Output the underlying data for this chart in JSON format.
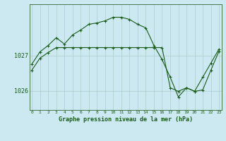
{
  "title": "Graphe pression niveau de la mer (hPa)",
  "background_color": "#cce8f0",
  "plot_bg_color": "#cce8f0",
  "grid_color": "#aacccc",
  "line_color": "#1a5c1a",
  "ylabel_labels": [
    1026,
    1027
  ],
  "x_ticks": [
    0,
    1,
    2,
    3,
    4,
    5,
    6,
    7,
    8,
    9,
    10,
    11,
    12,
    13,
    14,
    15,
    16,
    17,
    18,
    19,
    20,
    21,
    22,
    23
  ],
  "series1": {
    "x": [
      0,
      1,
      2,
      3,
      4,
      5,
      6,
      7,
      8,
      9,
      10,
      11,
      12,
      13,
      14,
      15,
      16,
      17,
      18,
      19,
      20,
      21,
      22,
      23
    ],
    "y": [
      1026.75,
      1027.1,
      1027.28,
      1027.5,
      1027.32,
      1027.58,
      1027.72,
      1027.88,
      1027.92,
      1027.98,
      1028.08,
      1028.08,
      1028.02,
      1027.88,
      1027.78,
      1027.28,
      1026.88,
      1026.38,
      1025.82,
      1026.08,
      1025.98,
      1026.38,
      1026.78,
      1027.18
    ]
  },
  "series2": {
    "x": [
      0,
      1,
      2,
      3,
      4,
      5,
      6,
      7,
      8,
      9,
      10,
      11,
      12,
      13,
      14,
      15,
      16,
      17,
      18,
      19,
      20,
      21,
      22,
      23
    ],
    "y": [
      1026.58,
      1026.92,
      1027.08,
      1027.22,
      1027.22,
      1027.22,
      1027.22,
      1027.22,
      1027.22,
      1027.22,
      1027.22,
      1027.22,
      1027.22,
      1027.22,
      1027.22,
      1027.22,
      1027.22,
      1026.08,
      1025.98,
      1026.08,
      1025.98,
      1026.02,
      1026.58,
      1027.12
    ]
  },
  "ylim": [
    1025.45,
    1028.45
  ],
  "xlim": [
    -0.3,
    23.3
  ]
}
